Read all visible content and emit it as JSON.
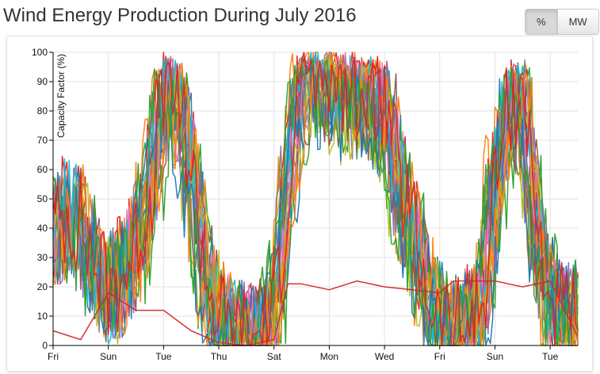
{
  "header": {
    "title": "Wind Energy Production During July 2016"
  },
  "toggle": {
    "percent_label": "%",
    "mw_label": "MW",
    "active": "percent"
  },
  "chart_data": {
    "type": "line",
    "title": "Wind Energy Production During July 2016",
    "ylabel": "Capacity Factor (%)",
    "xlabel": "",
    "ylim": [
      0,
      100
    ],
    "yticks": [
      0,
      10,
      20,
      30,
      40,
      50,
      60,
      70,
      80,
      90,
      100
    ],
    "xlim": [
      "2016-07-01",
      "2016-07-20"
    ],
    "xticks": [
      {
        "date": "2016-07-01",
        "label": "Fri"
      },
      {
        "date": "2016-07-03",
        "label": "Sun"
      },
      {
        "date": "2016-07-05",
        "label": "Tue"
      },
      {
        "date": "2016-07-07",
        "label": "Thu"
      },
      {
        "date": "2016-07-09",
        "label": "Sat"
      },
      {
        "date": "2016-07-11",
        "label": "Mon"
      },
      {
        "date": "2016-07-13",
        "label": "Wed"
      },
      {
        "date": "2016-07-15",
        "label": "Fri"
      },
      {
        "date": "2016-07-17",
        "label": "Sun"
      },
      {
        "date": "2016-07-19",
        "label": "Tue"
      }
    ],
    "grid": true,
    "legend": "none",
    "colors": [
      "#1f77b4",
      "#ff7f0e",
      "#2ca02c",
      "#d62728",
      "#9467bd",
      "#8c564b",
      "#e377c2",
      "#7f7f7f",
      "#bcbd22",
      "#17becf"
    ],
    "profile": {
      "dates": [
        "2016-07-01",
        "2016-07-01T12:00",
        "2016-07-02",
        "2016-07-02T12:00",
        "2016-07-03",
        "2016-07-03T12:00",
        "2016-07-04",
        "2016-07-04T12:00",
        "2016-07-05",
        "2016-07-05T12:00",
        "2016-07-06",
        "2016-07-06T12:00",
        "2016-07-07",
        "2016-07-07T12:00",
        "2016-07-08",
        "2016-07-08T12:00",
        "2016-07-09",
        "2016-07-09T12:00",
        "2016-07-10",
        "2016-07-10T12:00",
        "2016-07-11",
        "2016-07-11T12:00",
        "2016-07-12",
        "2016-07-12T12:00",
        "2016-07-13",
        "2016-07-13T12:00",
        "2016-07-14",
        "2016-07-14T12:00",
        "2016-07-15",
        "2016-07-15T12:00",
        "2016-07-16",
        "2016-07-16T12:00",
        "2016-07-17",
        "2016-07-17T12:00",
        "2016-07-18",
        "2016-07-18T12:00",
        "2016-07-19",
        "2016-07-19T12:00",
        "2016-07-20"
      ],
      "base": [
        38,
        45,
        40,
        28,
        18,
        24,
        34,
        50,
        88,
        84,
        60,
        25,
        8,
        4,
        2,
        3,
        10,
        55,
        92,
        94,
        93,
        90,
        88,
        85,
        82,
        55,
        40,
        20,
        6,
        3,
        8,
        10,
        55,
        82,
        84,
        40,
        14,
        8,
        12
      ]
    },
    "series": [
      {
        "seed": 1,
        "shift": 0.1,
        "scale": 1.0
      },
      {
        "seed": 2,
        "shift": -0.15,
        "scale": 1.05
      },
      {
        "seed": 3,
        "shift": 0.25,
        "scale": 0.95
      },
      {
        "seed": 4,
        "shift": -0.05,
        "scale": 1.08
      },
      {
        "seed": 5,
        "shift": 0.15,
        "scale": 0.92
      },
      {
        "seed": 6,
        "shift": -0.2,
        "scale": 1.02
      },
      {
        "seed": 7,
        "shift": 0.05,
        "scale": 0.98
      },
      {
        "seed": 8,
        "shift": -0.1,
        "scale": 1.06
      },
      {
        "seed": 9,
        "shift": 0.2,
        "scale": 0.9
      },
      {
        "seed": 10,
        "shift": 0.0,
        "scale": 1.0
      },
      {
        "seed": 11,
        "shift": -0.25,
        "scale": 0.97
      },
      {
        "seed": 12,
        "shift": 0.3,
        "scale": 1.03
      },
      {
        "seed": 13,
        "shift": -0.3,
        "scale": 0.94
      },
      {
        "seed": 14,
        "shift": 0.12,
        "scale": 1.07
      },
      {
        "seed": 15,
        "shift": -0.12,
        "scale": 0.99
      },
      {
        "seed": 16,
        "shift": 0.08,
        "scale": 0.93
      },
      {
        "seed": 17,
        "shift": -0.08,
        "scale": 1.04
      },
      {
        "seed": 18,
        "shift": 0.18,
        "scale": 1.01
      },
      {
        "seed": 19,
        "shift": -0.18,
        "scale": 0.96
      },
      {
        "seed": 20,
        "shift": 0.02,
        "scale": 1.05
      },
      {
        "seed": 21,
        "shift": 0.22,
        "scale": 0.91
      },
      {
        "seed": 22,
        "shift": -0.22,
        "scale": 1.0
      },
      {
        "seed": 23,
        "shift": 0.28,
        "scale": 0.98
      },
      {
        "seed": 24,
        "shift": -0.02,
        "scale": 1.02
      }
    ],
    "flat_series": [
      {
        "date": "2016-07-01",
        "value": 5
      },
      {
        "date": "2016-07-02",
        "value": 2
      },
      {
        "date": "2016-07-03",
        "value": 18
      },
      {
        "date": "2016-07-04",
        "value": 12
      },
      {
        "date": "2016-07-04T12:00",
        "value": 12
      },
      {
        "date": "2016-07-05",
        "value": 12
      },
      {
        "date": "2016-07-06",
        "value": 5
      },
      {
        "date": "2016-07-07",
        "value": 1
      },
      {
        "date": "2016-07-08",
        "value": 0
      },
      {
        "date": "2016-07-09",
        "value": 2
      },
      {
        "date": "2016-07-09T12:00",
        "value": 21
      },
      {
        "date": "2016-07-10",
        "value": 21
      },
      {
        "date": "2016-07-11",
        "value": 19
      },
      {
        "date": "2016-07-12",
        "value": 22
      },
      {
        "date": "2016-07-13",
        "value": 20
      },
      {
        "date": "2016-07-14",
        "value": 19
      },
      {
        "date": "2016-07-15",
        "value": 18
      },
      {
        "date": "2016-07-15T12:00",
        "value": 22
      },
      {
        "date": "2016-07-16",
        "value": 22
      },
      {
        "date": "2016-07-17",
        "value": 22
      },
      {
        "date": "2016-07-18",
        "value": 20
      },
      {
        "date": "2016-07-19",
        "value": 22
      },
      {
        "date": "2016-07-20",
        "value": 3
      }
    ]
  }
}
